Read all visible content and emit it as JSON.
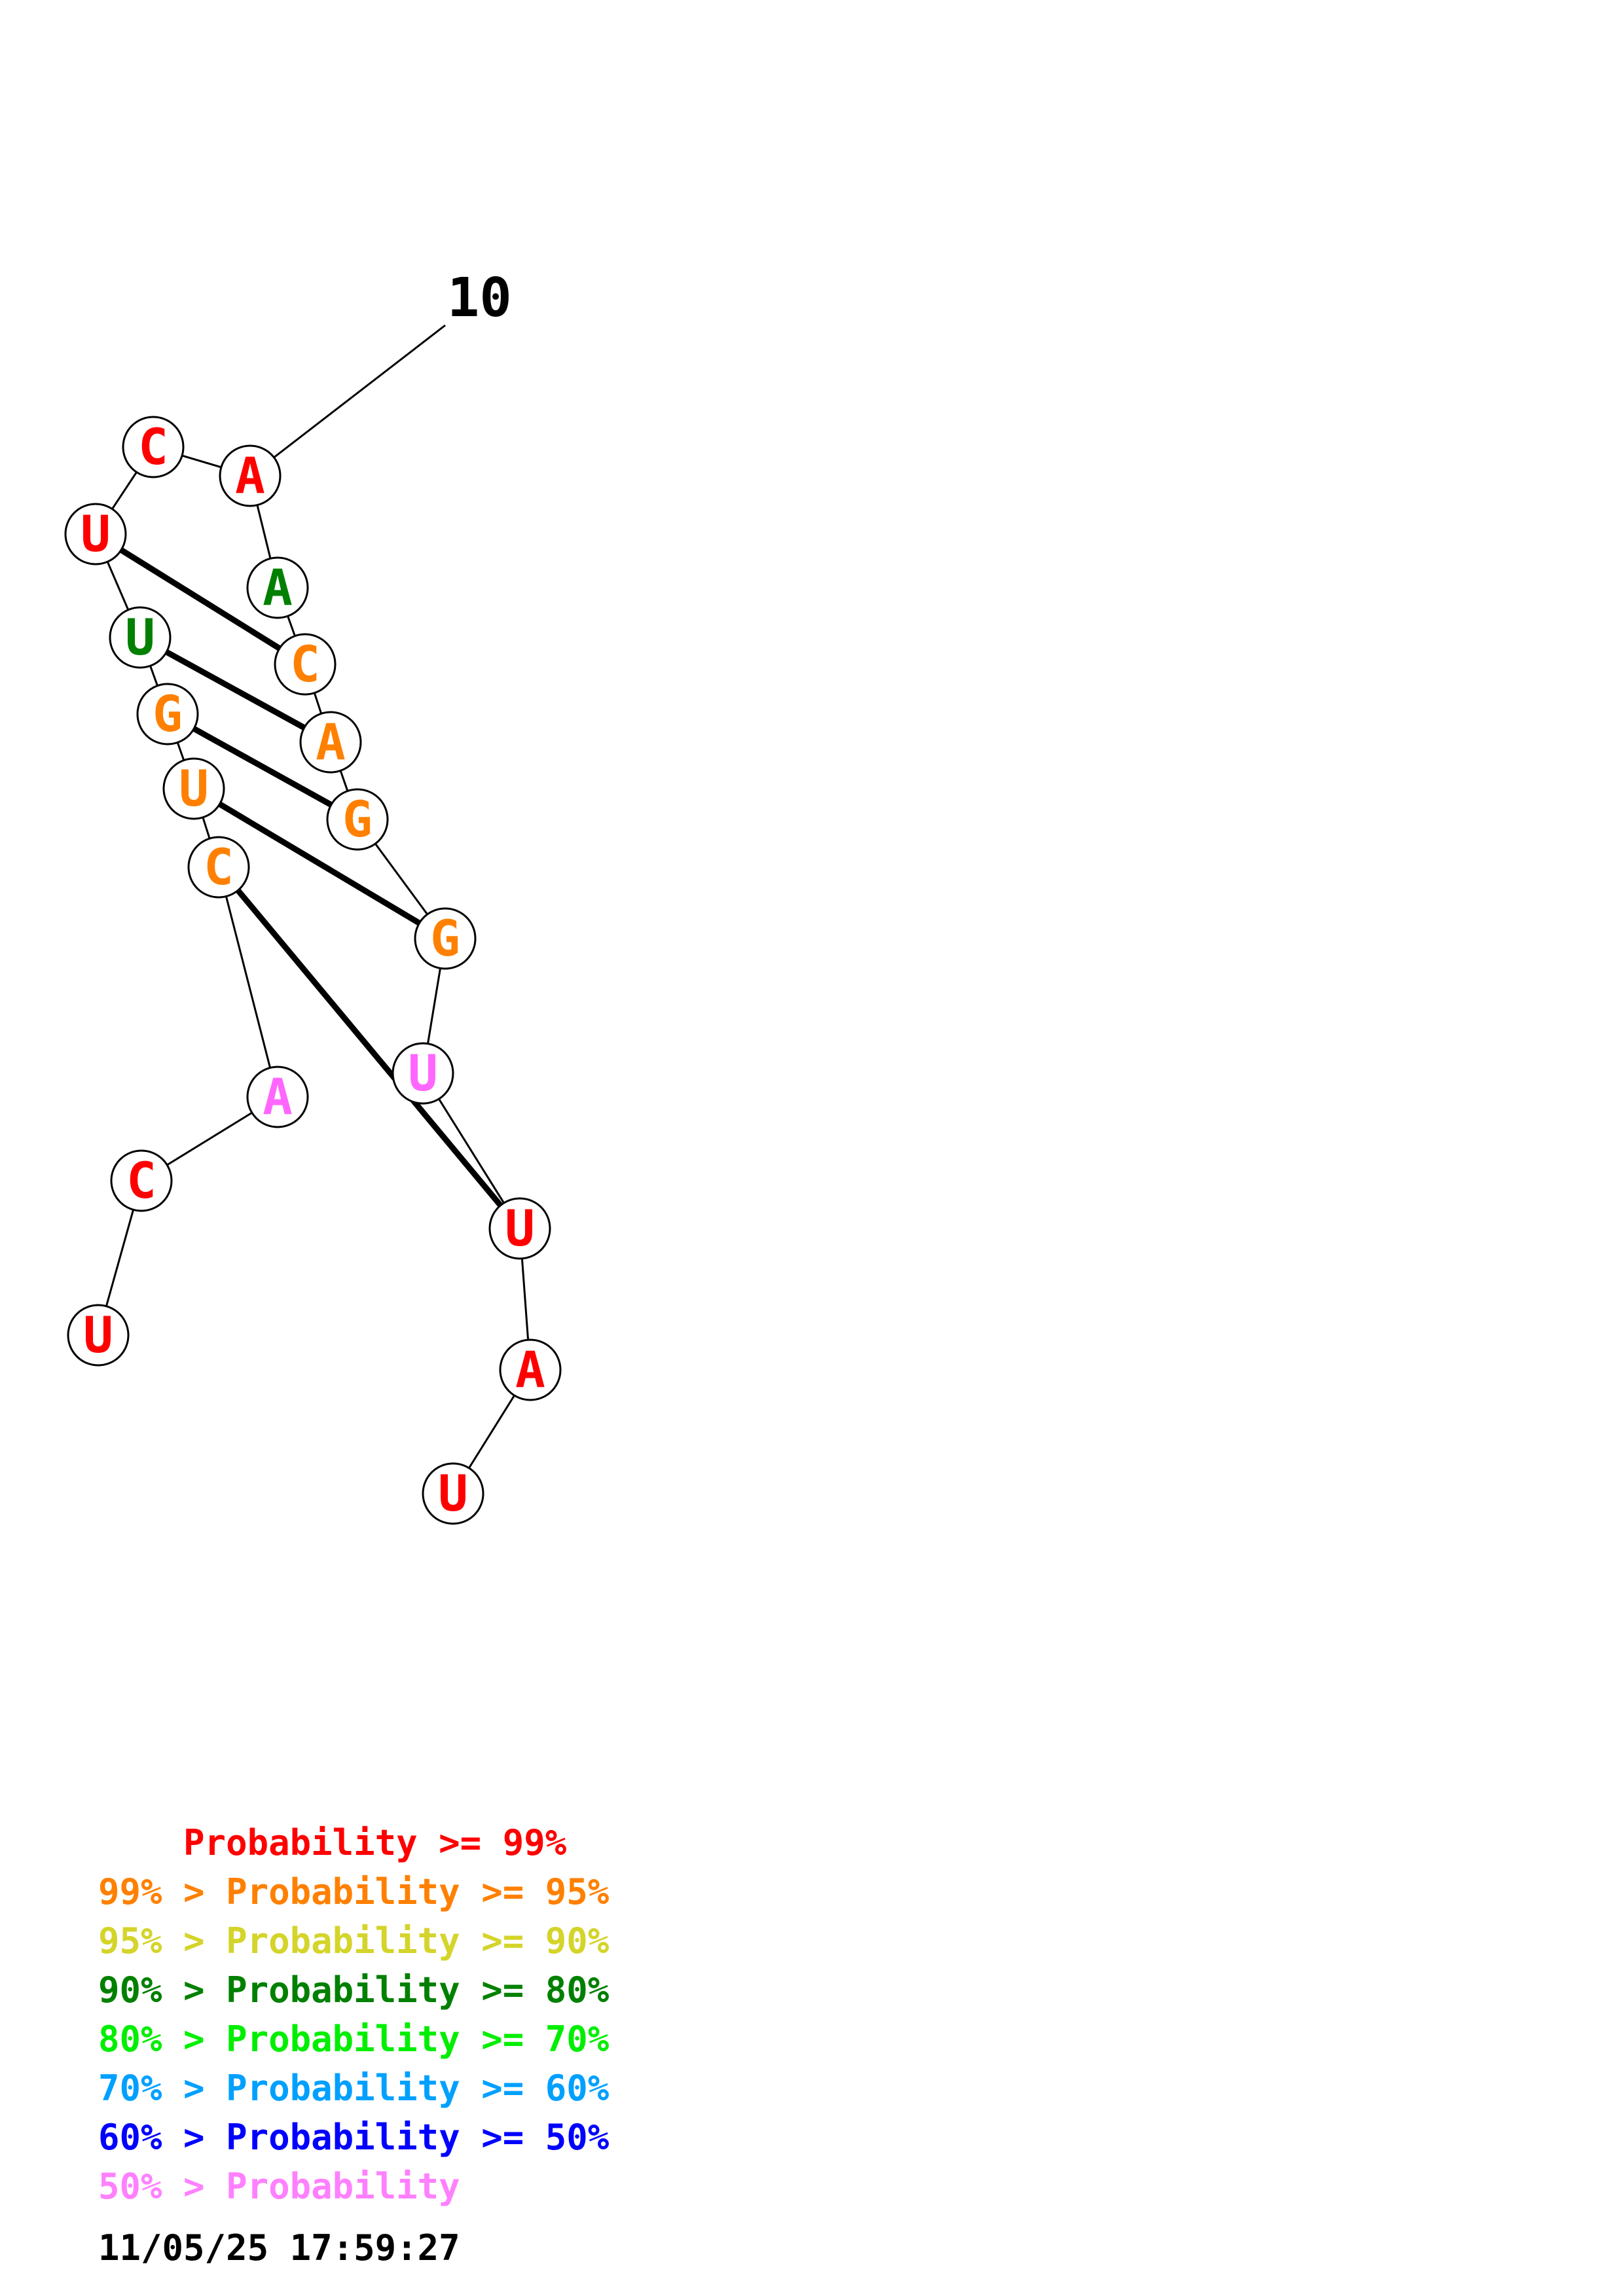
{
  "structure": {
    "position_label": "10",
    "bases": [
      {
        "letter": "U",
        "color": "#ff0000"
      },
      {
        "letter": "C",
        "color": "#ff0000"
      },
      {
        "letter": "A",
        "color": "#ff66ff"
      },
      {
        "letter": "C",
        "color": "#ff8000"
      },
      {
        "letter": "U",
        "color": "#ff8000"
      },
      {
        "letter": "G",
        "color": "#ff8000"
      },
      {
        "letter": "U",
        "color": "#008000"
      },
      {
        "letter": "U",
        "color": "#ff0000"
      },
      {
        "letter": "C",
        "color": "#ff0000"
      },
      {
        "letter": "A",
        "color": "#ff0000"
      },
      {
        "letter": "A",
        "color": "#008000"
      },
      {
        "letter": "C",
        "color": "#ff8000"
      },
      {
        "letter": "A",
        "color": "#ff8000"
      },
      {
        "letter": "G",
        "color": "#ff8000"
      },
      {
        "letter": "G",
        "color": "#ff8000"
      },
      {
        "letter": "U",
        "color": "#ff66ff"
      },
      {
        "letter": "U",
        "color": "#ff0000"
      },
      {
        "letter": "A",
        "color": "#ff0000"
      },
      {
        "letter": "U",
        "color": "#ff0000"
      }
    ],
    "pairs": [
      [
        7,
        11
      ],
      [
        6,
        12
      ],
      [
        5,
        13
      ],
      [
        4,
        14
      ],
      [
        3,
        16
      ]
    ]
  },
  "legend": [
    {
      "text": "    Probability >= 99%",
      "color": "#ff0000"
    },
    {
      "text": "99% > Probability >= 95%",
      "color": "#ff8000"
    },
    {
      "text": "95% > Probability >= 90%",
      "color": "#d4d42a"
    },
    {
      "text": "90% > Probability >= 80%",
      "color": "#008000"
    },
    {
      "text": "80% > Probability >= 70%",
      "color": "#00ee00"
    },
    {
      "text": "70% > Probability >= 60%",
      "color": "#00a0ff"
    },
    {
      "text": "60% > Probability >= 50%",
      "color": "#0000ff"
    },
    {
      "text": "50% > Probability",
      "color": "#ff80ff"
    }
  ],
  "timestamp": "11/05/25 17:59:27"
}
